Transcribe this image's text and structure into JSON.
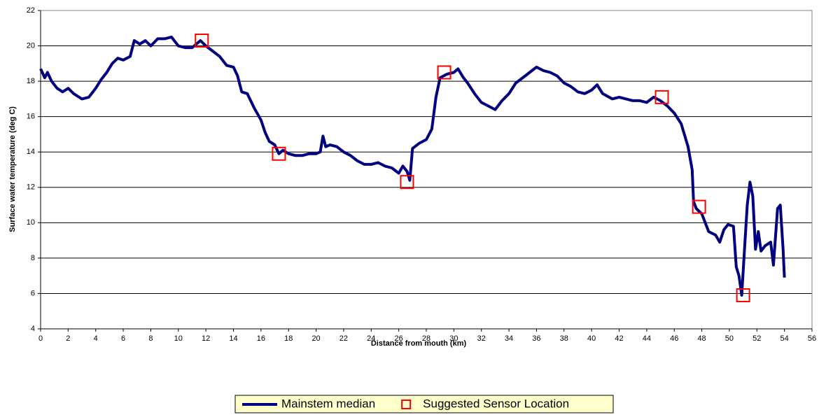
{
  "chart_data": {
    "type": "line",
    "xlabel": "Distance from mouth (km)",
    "ylabel": "Surface water temperature (deg C)",
    "xlim": [
      0,
      56
    ],
    "xticks": [
      0,
      2,
      4,
      6,
      8,
      10,
      12,
      14,
      16,
      18,
      20,
      22,
      24,
      26,
      28,
      30,
      32,
      34,
      36,
      38,
      40,
      42,
      44,
      46,
      48,
      50,
      52,
      54,
      56
    ],
    "ylim": [
      4,
      22
    ],
    "yticks": [
      4,
      6,
      8,
      10,
      12,
      14,
      16,
      18,
      20,
      22
    ],
    "grid": true,
    "legend": "bottom",
    "series": [
      {
        "name": "Mainstem median",
        "color": "#000080",
        "marker": "line",
        "x": [
          0,
          0.3,
          0.5,
          0.8,
          1.2,
          1.6,
          2.0,
          2.4,
          3.0,
          3.5,
          4.0,
          4.4,
          4.8,
          5.2,
          5.6,
          6.0,
          6.5,
          6.8,
          7.2,
          7.6,
          8.0,
          8.5,
          9.0,
          9.5,
          10.0,
          10.5,
          11.0,
          11.6,
          12.0,
          12.5,
          13.0,
          13.5,
          14.0,
          14.3,
          14.6,
          15.0,
          15.5,
          16.0,
          16.3,
          16.6,
          17.0,
          17.3,
          17.6,
          18.0,
          18.5,
          19.0,
          19.5,
          20.0,
          20.3,
          20.5,
          20.7,
          21.0,
          21.5,
          22.0,
          22.5,
          23.0,
          23.5,
          24.0,
          24.5,
          25.0,
          25.5,
          26.0,
          26.3,
          26.6,
          26.8,
          27.0,
          27.5,
          28.0,
          28.4,
          28.7,
          29.0,
          29.5,
          30.0,
          30.3,
          30.7,
          31.0,
          31.5,
          32.0,
          32.5,
          33.0,
          33.5,
          34.0,
          34.5,
          35.0,
          35.5,
          36.0,
          36.5,
          37.0,
          37.5,
          38.0,
          38.5,
          39.0,
          39.5,
          40.0,
          40.4,
          40.8,
          41.5,
          42.0,
          42.5,
          43.0,
          43.5,
          44.0,
          44.5,
          45.0,
          45.5,
          46.0,
          46.5,
          47.0,
          47.3,
          47.4,
          47.6,
          48.0,
          48.5,
          49.0,
          49.3,
          49.6,
          49.9,
          50.3,
          50.5,
          50.7,
          50.9,
          51.1,
          51.3,
          51.5,
          51.7,
          51.9,
          52.1,
          52.3,
          52.6,
          53.0,
          53.2,
          53.5,
          53.7,
          53.9,
          54.0
        ],
        "values": [
          18.7,
          18.2,
          18.5,
          18.0,
          17.6,
          17.4,
          17.6,
          17.3,
          17.0,
          17.1,
          17.6,
          18.1,
          18.5,
          19.0,
          19.3,
          19.2,
          19.4,
          20.3,
          20.1,
          20.3,
          20.0,
          20.4,
          20.4,
          20.5,
          20.0,
          19.9,
          19.9,
          20.3,
          20.0,
          19.7,
          19.4,
          18.9,
          18.8,
          18.3,
          17.4,
          17.3,
          16.5,
          15.8,
          15.1,
          14.6,
          14.4,
          13.9,
          14.1,
          13.9,
          13.8,
          13.8,
          13.9,
          13.9,
          14.0,
          14.9,
          14.3,
          14.4,
          14.3,
          14.0,
          13.8,
          13.5,
          13.3,
          13.3,
          13.4,
          13.2,
          13.1,
          12.8,
          13.2,
          12.9,
          12.4,
          14.2,
          14.5,
          14.7,
          15.3,
          17.1,
          18.2,
          18.4,
          18.5,
          18.7,
          18.2,
          17.9,
          17.3,
          16.8,
          16.6,
          16.4,
          16.9,
          17.3,
          17.9,
          18.2,
          18.5,
          18.8,
          18.6,
          18.5,
          18.3,
          17.9,
          17.7,
          17.4,
          17.3,
          17.5,
          17.8,
          17.3,
          17.0,
          17.1,
          17.0,
          16.9,
          16.9,
          16.8,
          17.1,
          16.9,
          16.6,
          16.2,
          15.6,
          14.3,
          13.0,
          11.2,
          10.8,
          10.5,
          9.5,
          9.3,
          8.9,
          9.6,
          9.9,
          9.8,
          7.5,
          7.0,
          5.9,
          8.5,
          11.0,
          12.3,
          11.5,
          8.5,
          9.5,
          8.4,
          8.7,
          8.9,
          7.6,
          10.8,
          11.0,
          8.5,
          6.9
        ]
      },
      {
        "name": "Suggested Sensor Location",
        "color": "#ff0000",
        "marker": "square",
        "x": [
          11.7,
          17.3,
          26.6,
          29.3,
          45.1,
          47.8,
          51.0
        ],
        "values": [
          20.3,
          13.9,
          12.3,
          18.5,
          17.1,
          10.9,
          5.9
        ]
      }
    ]
  }
}
